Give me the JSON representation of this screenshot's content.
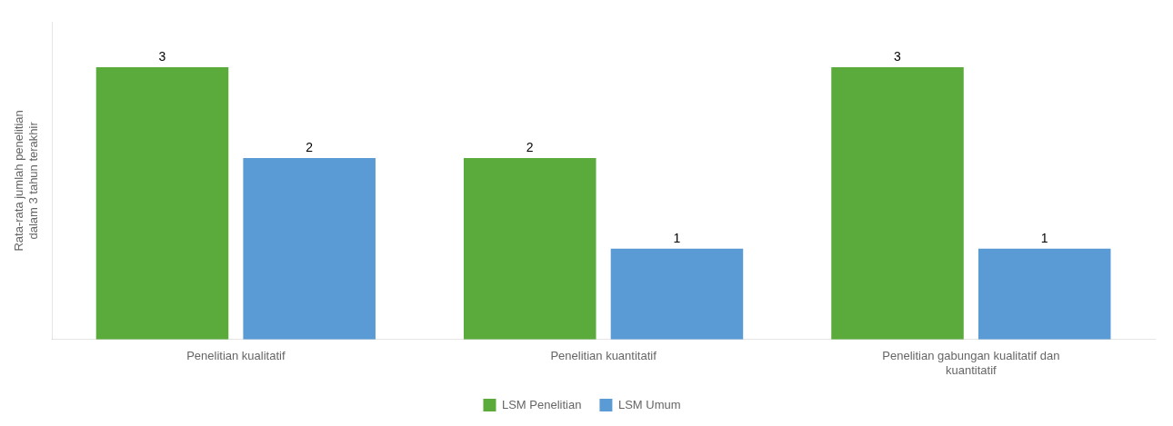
{
  "chart_data": {
    "type": "bar",
    "categories": [
      "Penelitian kualitatif",
      "Penelitian kuantitatif",
      "Penelitian gabungan kualitatif dan\nkuantitatif"
    ],
    "series": [
      {
        "name": "LSM Penelitian",
        "color": "#5aaa3c",
        "values": [
          3,
          2,
          3
        ]
      },
      {
        "name": "LSM Umum",
        "color": "#5b9bd5",
        "values": [
          2,
          1,
          1
        ]
      }
    ],
    "ylabel": "Rata-rata jumlah penelitian\ndalam 3 tahun terakhir",
    "ylim": [
      0,
      3.5
    ],
    "yticks": [],
    "tick_labels": "x",
    "data_labels": true,
    "legend": "bottom",
    "grid": false
  }
}
